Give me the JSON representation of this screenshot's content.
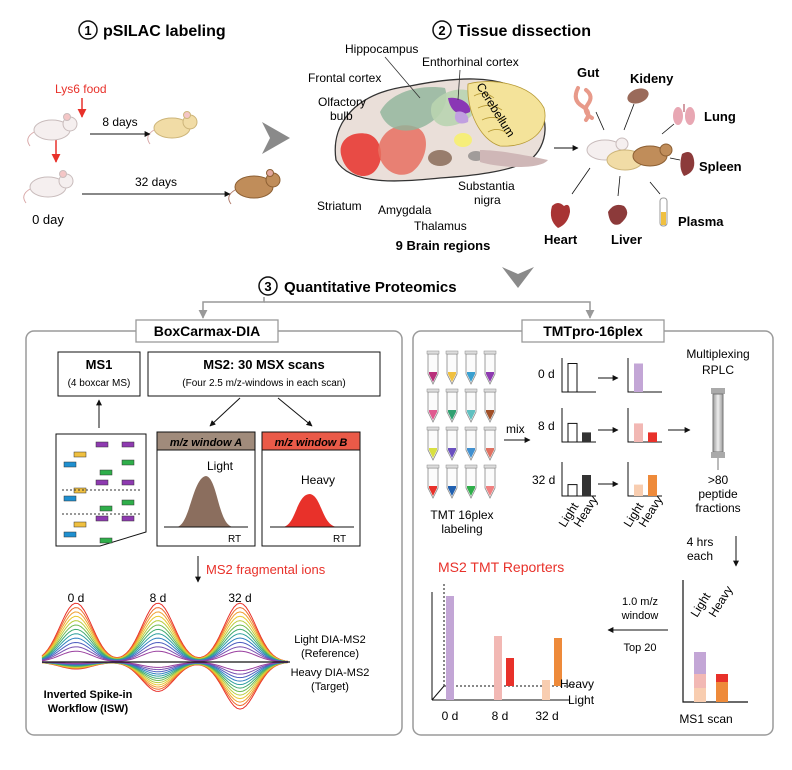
{
  "step1": {
    "number": "1",
    "title": "pSILAC labeling",
    "food_label": "Lys6 food",
    "arrow8": "8 days",
    "arrow32": "32 days",
    "day0": "0 day"
  },
  "step2": {
    "number": "2",
    "title": "Tissue dissection",
    "brain_regions": {
      "hippocampus": "Hippocampus",
      "entorhinal": "Enthorhinal cortex",
      "frontal": "Frontal cortex",
      "olfactory1": "Olfactory",
      "olfactory2": "bulb",
      "cerebellum": "Cerebellum",
      "striatum": "Striatum",
      "amygdala": "Amygdala",
      "thalamus": "Thalamus",
      "substantia1": "Substantia",
      "substantia2": "nigra"
    },
    "brain_caption": "9 Brain regions",
    "organs": {
      "gut": "Gut",
      "kidney": "Kideny",
      "lung": "Lung",
      "spleen": "Spleen",
      "plasma": "Plasma",
      "liver": "Liver",
      "heart": "Heart"
    }
  },
  "step3": {
    "number": "3",
    "title": "Quantitative Proteomics"
  },
  "boxcarmax": {
    "panel_title": "BoxCarmax-DIA",
    "ms1_title": "MS1",
    "ms1_sub": "(4 boxcar MS)",
    "ms2_title": "MS2: 30 MSX scans",
    "ms2_sub": "(Four 2.5 m/z-windows in each scan)",
    "window_a": "m/z window A",
    "window_b": "m/z window B",
    "light": "Light",
    "heavy": "Heavy",
    "rt_a": "RT",
    "rt_b": "RT",
    "fragment_label": "MS2 fragmental ions",
    "time_0": "0 d",
    "time_8": "8 d",
    "time_32": "32 d",
    "light_dia1": "Light DIA-MS2",
    "light_dia2": "(Reference)",
    "heavy_dia1": "Heavy DIA-MS2",
    "heavy_dia2": "(Target)",
    "isw1": "Inverted Spike-in",
    "isw2": "Workflow (ISW)"
  },
  "tmt": {
    "panel_title": "TMTpro-16plex",
    "label1": "TMT 16plex",
    "label2": "labeling",
    "mix": "mix",
    "row_0": "0 d",
    "row_8": "8 d",
    "row_32": "32 d",
    "axis_light": "Light",
    "axis_heavy": "Heavy",
    "multiplex1": "Multiplexing",
    "multiplex2": "RPLC",
    "fractions1": ">80",
    "fractions2": "peptide",
    "fractions3": "fractions",
    "hrs1": "4 hrs",
    "hrs2": "each",
    "reporters_title": "MS2 TMT Reporters",
    "mz1": "1.0 m/z",
    "mz2": "window",
    "top20": "Top 20",
    "rep_0": "0 d",
    "rep_8": "8 d",
    "rep_32": "32 d",
    "rep_heavy": "Heavy",
    "rep_light": "Light",
    "ms1_light": "Light",
    "ms1_heavy": "Heavy",
    "ms1_scan": "MS1 scan"
  },
  "colors": {
    "red": "#e8312a",
    "gray_arrow": "#8a8a8a",
    "panel_border": "#9a9a9a",
    "window_a_header": "#a08b7b",
    "window_b_header": "#ea5a48",
    "peak_light": "#8b6e5e",
    "peak_heavy": "#e8312a",
    "lavender": "#c3a6d6",
    "pink": "#f2b8b4",
    "dark": "#333333",
    "orange": "#ee8a3a",
    "peach": "#f8cdb0"
  }
}
